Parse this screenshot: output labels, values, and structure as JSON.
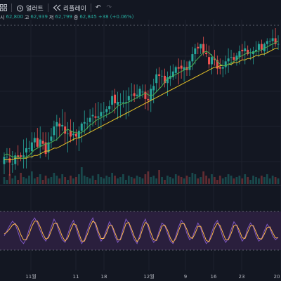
{
  "toolbar": {
    "alerts_label": "얼러트",
    "replay_label": "리플레이",
    "undo_glyph": "↶",
    "redo_glyph": "↷"
  },
  "legend": {
    "open_label": "시",
    "open": "62,800",
    "high_label": "고",
    "high": "62,939",
    "low_label": "저",
    "low": "62,799",
    "close_label": "종",
    "close": "62,845",
    "change": "+38 (+0.06%)"
  },
  "colors": {
    "background": "#131722",
    "up": "#26a69a",
    "down": "#ef5350",
    "ma_fast": "#4caf50",
    "ma_slow": "#e6c229",
    "osc": "#7e57c2",
    "osc_signal": "#ffb74d",
    "osc_band": "#2a1f3d"
  },
  "chart_data": {
    "type": "candlestick",
    "x_tick_labels": [
      "11월",
      "11",
      "18",
      "12월",
      "9",
      "16",
      "23",
      "20"
    ],
    "candles": [
      [
        54.3,
        55.1,
        53.6,
        54.8
      ],
      [
        54.8,
        55.4,
        54.4,
        54.8
      ],
      [
        54.7,
        55.4,
        53.5,
        54.4
      ],
      [
        54.3,
        55.2,
        53.7,
        54.3
      ],
      [
        54.3,
        55.1,
        53.9,
        54.9
      ],
      [
        54.9,
        55.6,
        54.2,
        54.8
      ],
      [
        54.9,
        55.1,
        54.5,
        54.8
      ],
      [
        54.8,
        56.0,
        54.0,
        54.9
      ],
      [
        55.1,
        56.1,
        54.0,
        55.4
      ],
      [
        55.4,
        55.9,
        55.1,
        55.4
      ],
      [
        55.2,
        56.5,
        54.7,
        55.8
      ],
      [
        55.8,
        56.5,
        55.4,
        56.1
      ],
      [
        56.1,
        56.8,
        55.4,
        55.5
      ],
      [
        55.5,
        56.9,
        54.7,
        56.0
      ],
      [
        55.9,
        56.5,
        55.3,
        55.7
      ],
      [
        55.8,
        56.5,
        54.8,
        55.0
      ],
      [
        55.1,
        56.5,
        54.6,
        55.8
      ],
      [
        55.9,
        56.8,
        55.4,
        56.2
      ],
      [
        56.3,
        57.3,
        55.9,
        56.9
      ],
      [
        56.9,
        57.7,
        55.9,
        57.2
      ],
      [
        57.1,
        57.5,
        56.2,
        56.9
      ],
      [
        56.9,
        58.1,
        56.6,
        57.0
      ],
      [
        56.9,
        57.9,
        55.7,
        56.4
      ],
      [
        56.4,
        57.2,
        55.1,
        56.4
      ],
      [
        56.6,
        57.4,
        55.8,
        56.2
      ],
      [
        56.3,
        57.2,
        55.9,
        56.4
      ],
      [
        56.4,
        56.7,
        55.6,
        56.2
      ],
      [
        56.1,
        56.9,
        55.2,
        56.6
      ],
      [
        56.6,
        57.2,
        55.8,
        57.1
      ],
      [
        57.1,
        58.0,
        56.4,
        57.2
      ],
      [
        57.1,
        57.5,
        56.7,
        57.1
      ],
      [
        57.2,
        58.1,
        56.5,
        57.5
      ],
      [
        57.6,
        58.2,
        56.9,
        57.7
      ],
      [
        57.6,
        58.5,
        57.0,
        57.5
      ],
      [
        57.5,
        58.6,
        56.8,
        57.6
      ],
      [
        57.6,
        58.5,
        56.7,
        57.9
      ],
      [
        57.9,
        58.6,
        57.3,
        57.9
      ],
      [
        57.9,
        58.3,
        57.5,
        58.1
      ],
      [
        58.1,
        58.7,
        57.8,
        58.3
      ],
      [
        58.4,
        59.4,
        58.0,
        59.0
      ],
      [
        59.1,
        59.5,
        57.8,
        58.5
      ],
      [
        58.4,
        59.3,
        57.4,
        58.6
      ],
      [
        58.6,
        59.2,
        57.5,
        58.6
      ],
      [
        58.6,
        59.4,
        58.2,
        58.6
      ],
      [
        58.6,
        59.4,
        57.4,
        58.6
      ],
      [
        58.7,
        59.6,
        57.6,
        59.0
      ],
      [
        59.1,
        59.9,
        58.6,
        59.1
      ],
      [
        59.2,
        59.8,
        58.6,
        59.0
      ],
      [
        59.0,
        59.8,
        58.8,
        59.1
      ],
      [
        59.0,
        59.7,
        58.8,
        59.5
      ],
      [
        59.3,
        59.8,
        58.9,
        59.3
      ],
      [
        59.3,
        59.8,
        58.1,
        58.8
      ],
      [
        58.8,
        59.4,
        58.0,
        58.7
      ],
      [
        58.7,
        59.8,
        57.9,
        59.5
      ],
      [
        59.4,
        60.2,
        58.5,
        59.7
      ],
      [
        59.9,
        60.9,
        59.3,
        60.5
      ],
      [
        60.5,
        61.0,
        59.5,
        60.4
      ],
      [
        60.4,
        60.8,
        59.8,
        60.4
      ],
      [
        60.4,
        60.9,
        59.6,
        59.9
      ],
      [
        59.9,
        60.7,
        59.0,
        60.3
      ],
      [
        60.2,
        61.1,
        59.7,
        60.4
      ],
      [
        60.3,
        61.2,
        60.1,
        60.7
      ],
      [
        60.6,
        61.1,
        60.2,
        61.0
      ],
      [
        61.0,
        61.6,
        59.8,
        60.9
      ],
      [
        61.1,
        61.5,
        60.2,
        60.9
      ],
      [
        60.8,
        61.5,
        60.0,
        61.0
      ],
      [
        61.0,
        61.4,
        60.4,
        60.8
      ],
      [
        60.8,
        61.5,
        60.4,
        61.4
      ],
      [
        61.4,
        62.4,
        60.8,
        61.9
      ],
      [
        61.9,
        62.6,
        61.2,
        62.3
      ],
      [
        62.4,
        62.7,
        61.9,
        62.3
      ],
      [
        62.3,
        62.6,
        61.9,
        62.6
      ],
      [
        62.6,
        63.1,
        61.8,
        62.0
      ],
      [
        62.0,
        62.6,
        61.7,
        61.9
      ],
      [
        61.7,
        62.5,
        60.9,
        61.2
      ],
      [
        61.2,
        61.9,
        60.5,
        61.7
      ],
      [
        61.6,
        62.2,
        61.1,
        61.5
      ],
      [
        61.5,
        61.8,
        60.5,
        60.9
      ],
      [
        61.0,
        61.6,
        60.5,
        60.9
      ],
      [
        60.9,
        61.5,
        60.3,
        61.0
      ],
      [
        61.0,
        61.8,
        60.5,
        61.4
      ],
      [
        61.4,
        62.3,
        60.6,
        61.6
      ],
      [
        61.7,
        62.2,
        61.1,
        61.7
      ],
      [
        61.7,
        62.0,
        61.3,
        61.5
      ],
      [
        61.5,
        62.0,
        61.1,
        61.8
      ],
      [
        61.7,
        62.5,
        61.2,
        62.1
      ],
      [
        62.2,
        62.6,
        61.5,
        62.1
      ],
      [
        62.1,
        62.8,
        61.2,
        62.3
      ],
      [
        62.2,
        62.5,
        61.8,
        61.9
      ],
      [
        62.0,
        62.3,
        61.5,
        62.0
      ],
      [
        61.9,
        62.4,
        61.2,
        62.1
      ],
      [
        62.1,
        62.8,
        61.8,
        62.2
      ],
      [
        62.2,
        62.8,
        61.7,
        62.6
      ],
      [
        62.6,
        62.9,
        62.0,
        62.2
      ],
      [
        62.1,
        62.7,
        61.8,
        62.6
      ],
      [
        62.6,
        63.0,
        62.0,
        62.8
      ],
      [
        62.8,
        63.0,
        62.5,
        62.8
      ],
      [
        62.8,
        63.6,
        62.2,
        63.0
      ],
      [
        63.0,
        63.7,
        62.4,
        62.6
      ],
      [
        62.6,
        63.2,
        62.2,
        62.6
      ]
    ],
    "ma_fast": [
      54.9,
      55.0,
      54.9,
      54.8,
      54.8,
      54.8,
      54.7,
      54.7,
      54.8,
      54.9,
      55.1,
      55.3,
      55.4,
      55.5,
      55.6,
      55.7,
      55.7,
      55.8,
      55.9,
      56.0,
      56.2,
      56.4,
      56.6,
      56.7,
      56.6,
      56.5,
      56.5,
      56.4,
      56.5,
      56.6,
      56.8,
      57.0,
      57.1,
      57.3,
      57.4,
      57.5,
      57.6,
      57.7,
      57.8,
      57.9,
      58.1,
      58.3,
      58.4,
      58.5,
      58.5,
      58.6,
      58.7,
      58.8,
      58.9,
      59.0,
      59.1,
      59.2,
      59.1,
      59.0,
      59.1,
      59.3,
      59.5,
      59.7,
      60.0,
      60.2,
      60.3,
      60.4,
      60.5,
      60.6,
      60.7,
      60.8,
      60.9,
      61.0,
      61.1,
      61.4,
      61.6,
      61.8,
      62.0,
      62.1,
      62.0,
      61.8,
      61.6,
      61.4,
      61.2,
      61.1,
      61.1,
      61.2,
      61.3,
      61.4,
      61.5,
      61.7,
      61.8,
      61.9,
      62.0,
      62.0,
      62.0,
      62.1,
      62.1,
      62.2,
      62.3,
      62.4,
      62.5,
      62.6,
      62.7,
      62.8
    ],
    "ma_slow": [
      54.6,
      54.6,
      54.6,
      54.6,
      54.7,
      54.7,
      54.7,
      54.7,
      54.7,
      54.8,
      54.8,
      54.9,
      54.9,
      55.0,
      55.1,
      55.2,
      55.2,
      55.3,
      55.4,
      55.4,
      55.5,
      55.6,
      55.7,
      55.8,
      55.9,
      56.0,
      56.1,
      56.1,
      56.2,
      56.3,
      56.4,
      56.5,
      56.6,
      56.7,
      56.8,
      56.9,
      57.0,
      57.1,
      57.2,
      57.3,
      57.4,
      57.5,
      57.6,
      57.7,
      57.8,
      57.9,
      58.0,
      58.1,
      58.2,
      58.3,
      58.4,
      58.5,
      58.6,
      58.7,
      58.8,
      58.9,
      59.0,
      59.1,
      59.2,
      59.3,
      59.4,
      59.5,
      59.6,
      59.7,
      59.8,
      59.9,
      60.0,
      60.1,
      60.2,
      60.3,
      60.4,
      60.5,
      60.6,
      60.7,
      60.8,
      60.9,
      61.0,
      61.0,
      61.1,
      61.1,
      61.1,
      61.2,
      61.2,
      61.3,
      61.3,
      61.4,
      61.5,
      61.5,
      61.6,
      61.6,
      61.7,
      61.8,
      61.8,
      61.9,
      61.9,
      62.0,
      62.1,
      62.2,
      62.3,
      62.3
    ],
    "volume": [
      5,
      3,
      7,
      4,
      6,
      3,
      8,
      5,
      4,
      6,
      9,
      4,
      5,
      7,
      3,
      6,
      4,
      5,
      8,
      6,
      4,
      7,
      5,
      3,
      6,
      4,
      5,
      7,
      12,
      6,
      5,
      4,
      6,
      3,
      7,
      5,
      4,
      6,
      5,
      8,
      6,
      4,
      5,
      7,
      3,
      6,
      5,
      4,
      6,
      5,
      4,
      7,
      9,
      5,
      6,
      4,
      10,
      5,
      3,
      6,
      5,
      4,
      7,
      6,
      5,
      4,
      6,
      5,
      8,
      7,
      4,
      5,
      9,
      6,
      4,
      7,
      5,
      3,
      6,
      4,
      5,
      7,
      6,
      4,
      5,
      6,
      4,
      7,
      5,
      3,
      6,
      5,
      4,
      6,
      5,
      7,
      4,
      6,
      5,
      4
    ],
    "osc": [
      52,
      60,
      68,
      75,
      70,
      58,
      45,
      40,
      48,
      62,
      74,
      80,
      72,
      60,
      50,
      44,
      52,
      66,
      78,
      70,
      56,
      46,
      42,
      55,
      68,
      76,
      64,
      50,
      40,
      46,
      60,
      72,
      80,
      68,
      54,
      44,
      50,
      62,
      74,
      66,
      52,
      42,
      48,
      64,
      78,
      72,
      58,
      46,
      40,
      54,
      70,
      78,
      66,
      50,
      42,
      46,
      60,
      72,
      68,
      56,
      44,
      40,
      52,
      66,
      76,
      70,
      56,
      46,
      50,
      62,
      72,
      64,
      50,
      40,
      44,
      58,
      70,
      76,
      64,
      50,
      42,
      48,
      62,
      74,
      68,
      54,
      44,
      50,
      64,
      72,
      66,
      52,
      44,
      48,
      60,
      70,
      64,
      52,
      46,
      50
    ],
    "osc_signal": [
      55,
      58,
      63,
      69,
      71,
      65,
      54,
      46,
      46,
      55,
      67,
      75,
      75,
      66,
      55,
      47,
      49,
      60,
      71,
      72,
      62,
      51,
      44,
      49,
      61,
      71,
      69,
      56,
      44,
      44,
      54,
      66,
      75,
      72,
      59,
      48,
      48,
      57,
      69,
      68,
      57,
      46,
      46,
      58,
      71,
      73,
      63,
      51,
      43,
      49,
      63,
      73,
      70,
      57,
      46,
      45,
      55,
      67,
      69,
      61,
      49,
      42,
      48,
      60,
      71,
      71,
      62,
      51,
      48,
      56,
      67,
      67,
      56,
      45,
      43,
      52,
      64,
      72,
      68,
      57,
      46,
      46,
      56,
      68,
      69,
      60,
      49,
      48,
      58,
      68,
      68,
      58,
      48,
      47,
      55,
      65,
      66,
      57,
      49,
      49
    ],
    "osc_bounds": [
      30,
      90
    ]
  }
}
